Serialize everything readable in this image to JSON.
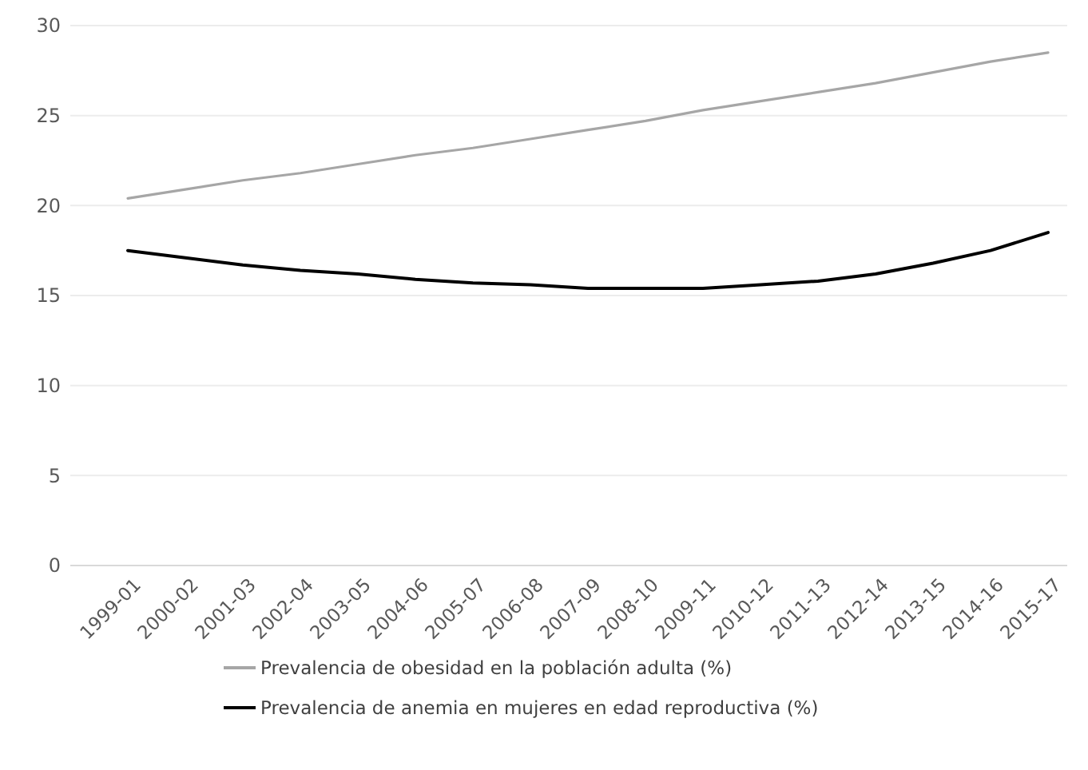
{
  "chart_data": {
    "type": "line",
    "categories": [
      "1999-01",
      "2000-02",
      "2001-03",
      "2002-04",
      "2003-05",
      "2004-06",
      "2005-07",
      "2006-08",
      "2007-09",
      "2008-10",
      "2009-11",
      "2010-12",
      "2011-13",
      "2012-14",
      "2013-15",
      "2014-16",
      "2015-17"
    ],
    "series": [
      {
        "name": "Prevalencia de obesidad en la población adulta (%)",
        "color": "#a6a6a6",
        "values": [
          20.4,
          20.9,
          21.4,
          21.8,
          22.3,
          22.8,
          23.2,
          23.7,
          24.2,
          24.7,
          25.3,
          25.8,
          26.3,
          26.8,
          27.4,
          28.0,
          28.5
        ]
      },
      {
        "name": "Prevalencia de anemia en mujeres en edad reproductiva (%)",
        "color": "#000000",
        "values": [
          17.5,
          17.1,
          16.7,
          16.4,
          16.2,
          15.9,
          15.7,
          15.6,
          15.4,
          15.4,
          15.4,
          15.6,
          15.8,
          16.2,
          16.8,
          17.5,
          18.5
        ]
      }
    ],
    "ylim": [
      0,
      30
    ],
    "yticks": [
      0,
      5,
      10,
      15,
      20,
      25,
      30
    ],
    "grid": "y",
    "legend": "bottom",
    "marker": "none",
    "line_style": "solid"
  }
}
